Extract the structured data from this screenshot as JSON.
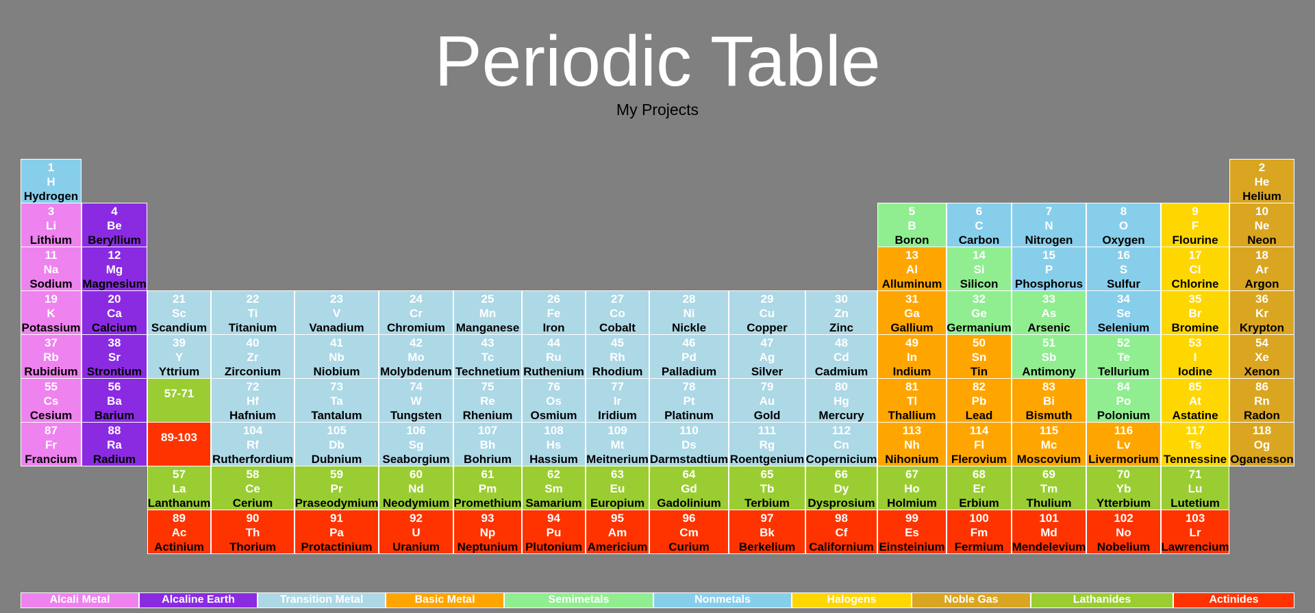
{
  "header": {
    "title": "Periodic Table",
    "subtitle": "My Projects"
  },
  "colors": {
    "alkali": "#ee82ee",
    "alkaline": "#8a2be2",
    "transition": "#add8e6",
    "basic": "#ffa500",
    "semimetal": "#90ee90",
    "nonmetal": "#87ceeb",
    "halogen": "#ffd700",
    "noble": "#daa520",
    "lanthanide": "#9acd32",
    "actinide": "#ff3300"
  },
  "elements": [
    {
      "n": "1",
      "s": "H",
      "name": "Hydrogen",
      "row": 1,
      "col": 1,
      "t": "nonmetal"
    },
    {
      "n": "2",
      "s": "He",
      "name": "Helium",
      "row": 1,
      "col": 18,
      "t": "noble"
    },
    {
      "n": "3",
      "s": "Li",
      "name": "Lithium",
      "row": 2,
      "col": 1,
      "t": "alkali"
    },
    {
      "n": "4",
      "s": "Be",
      "name": "Beryllium",
      "row": 2,
      "col": 2,
      "t": "alkaline"
    },
    {
      "n": "5",
      "s": "B",
      "name": "Boron",
      "row": 2,
      "col": 13,
      "t": "semimetal"
    },
    {
      "n": "6",
      "s": "C",
      "name": "Carbon",
      "row": 2,
      "col": 14,
      "t": "nonmetal"
    },
    {
      "n": "7",
      "s": "N",
      "name": "Nitrogen",
      "row": 2,
      "col": 15,
      "t": "nonmetal"
    },
    {
      "n": "8",
      "s": "O",
      "name": "Oxygen",
      "row": 2,
      "col": 16,
      "t": "nonmetal"
    },
    {
      "n": "9",
      "s": "F",
      "name": "Flourine",
      "row": 2,
      "col": 17,
      "t": "halogen"
    },
    {
      "n": "10",
      "s": "Ne",
      "name": "Neon",
      "row": 2,
      "col": 18,
      "t": "noble"
    },
    {
      "n": "11",
      "s": "Na",
      "name": "Sodium",
      "row": 3,
      "col": 1,
      "t": "alkali"
    },
    {
      "n": "12",
      "s": "Mg",
      "name": "Magnesium",
      "row": 3,
      "col": 2,
      "t": "alkaline"
    },
    {
      "n": "13",
      "s": "Al",
      "name": "Alluminum",
      "row": 3,
      "col": 13,
      "t": "basic"
    },
    {
      "n": "14",
      "s": "Si",
      "name": "Silicon",
      "row": 3,
      "col": 14,
      "t": "semimetal"
    },
    {
      "n": "15",
      "s": "P",
      "name": "Phosphorus",
      "row": 3,
      "col": 15,
      "t": "nonmetal"
    },
    {
      "n": "16",
      "s": "S",
      "name": "Sulfur",
      "row": 3,
      "col": 16,
      "t": "nonmetal"
    },
    {
      "n": "17",
      "s": "Cl",
      "name": "Chlorine",
      "row": 3,
      "col": 17,
      "t": "halogen"
    },
    {
      "n": "18",
      "s": "Ar",
      "name": "Argon",
      "row": 3,
      "col": 18,
      "t": "noble"
    },
    {
      "n": "19",
      "s": "K",
      "name": "Potassium",
      "row": 4,
      "col": 1,
      "t": "alkali"
    },
    {
      "n": "20",
      "s": "Ca",
      "name": "Calcium",
      "row": 4,
      "col": 2,
      "t": "alkaline"
    },
    {
      "n": "21",
      "s": "Sc",
      "name": "Scandium",
      "row": 4,
      "col": 3,
      "t": "transition"
    },
    {
      "n": "22",
      "s": "Ti",
      "name": "Titanium",
      "row": 4,
      "col": 4,
      "t": "transition"
    },
    {
      "n": "23",
      "s": "V",
      "name": "Vanadium",
      "row": 4,
      "col": 5,
      "t": "transition"
    },
    {
      "n": "24",
      "s": "Cr",
      "name": "Chromium",
      "row": 4,
      "col": 6,
      "t": "transition"
    },
    {
      "n": "25",
      "s": "Mn",
      "name": "Manganese",
      "row": 4,
      "col": 7,
      "t": "transition"
    },
    {
      "n": "26",
      "s": "Fe",
      "name": "Iron",
      "row": 4,
      "col": 8,
      "t": "transition"
    },
    {
      "n": "27",
      "s": "Co",
      "name": "Cobalt",
      "row": 4,
      "col": 9,
      "t": "transition"
    },
    {
      "n": "28",
      "s": "Ni",
      "name": "Nickle",
      "row": 4,
      "col": 10,
      "t": "transition"
    },
    {
      "n": "29",
      "s": "Cu",
      "name": "Copper",
      "row": 4,
      "col": 11,
      "t": "transition"
    },
    {
      "n": "30",
      "s": "Zn",
      "name": "Zinc",
      "row": 4,
      "col": 12,
      "t": "transition"
    },
    {
      "n": "31",
      "s": "Ga",
      "name": "Gallium",
      "row": 4,
      "col": 13,
      "t": "basic"
    },
    {
      "n": "32",
      "s": "Ge",
      "name": "Germanium",
      "row": 4,
      "col": 14,
      "t": "semimetal"
    },
    {
      "n": "33",
      "s": "As",
      "name": "Arsenic",
      "row": 4,
      "col": 15,
      "t": "semimetal"
    },
    {
      "n": "34",
      "s": "Se",
      "name": "Selenium",
      "row": 4,
      "col": 16,
      "t": "nonmetal"
    },
    {
      "n": "35",
      "s": "Br",
      "name": "Bromine",
      "row": 4,
      "col": 17,
      "t": "halogen"
    },
    {
      "n": "36",
      "s": "Kr",
      "name": "Krypton",
      "row": 4,
      "col": 18,
      "t": "noble"
    },
    {
      "n": "37",
      "s": "Rb",
      "name": "Rubidium",
      "row": 5,
      "col": 1,
      "t": "alkali"
    },
    {
      "n": "38",
      "s": "Sr",
      "name": "Strontium",
      "row": 5,
      "col": 2,
      "t": "alkaline"
    },
    {
      "n": "39",
      "s": "Y",
      "name": "Yttrium",
      "row": 5,
      "col": 3,
      "t": "transition"
    },
    {
      "n": "40",
      "s": "Zr",
      "name": "Zirconium",
      "row": 5,
      "col": 4,
      "t": "transition"
    },
    {
      "n": "41",
      "s": "Nb",
      "name": "Niobium",
      "row": 5,
      "col": 5,
      "t": "transition"
    },
    {
      "n": "42",
      "s": "Mo",
      "name": "Molybdenum",
      "row": 5,
      "col": 6,
      "t": "transition"
    },
    {
      "n": "43",
      "s": "Tc",
      "name": "Technetium",
      "row": 5,
      "col": 7,
      "t": "transition"
    },
    {
      "n": "44",
      "s": "Ru",
      "name": "Ruthenium",
      "row": 5,
      "col": 8,
      "t": "transition"
    },
    {
      "n": "45",
      "s": "Rh",
      "name": "Rhodium",
      "row": 5,
      "col": 9,
      "t": "transition"
    },
    {
      "n": "46",
      "s": "Pd",
      "name": "Palladium",
      "row": 5,
      "col": 10,
      "t": "transition"
    },
    {
      "n": "47",
      "s": "Ag",
      "name": "Silver",
      "row": 5,
      "col": 11,
      "t": "transition"
    },
    {
      "n": "48",
      "s": "Cd",
      "name": "Cadmium",
      "row": 5,
      "col": 12,
      "t": "transition"
    },
    {
      "n": "49",
      "s": "In",
      "name": "Indium",
      "row": 5,
      "col": 13,
      "t": "basic"
    },
    {
      "n": "50",
      "s": "Sn",
      "name": "Tin",
      "row": 5,
      "col": 14,
      "t": "basic"
    },
    {
      "n": "51",
      "s": "Sb",
      "name": "Antimony",
      "row": 5,
      "col": 15,
      "t": "semimetal"
    },
    {
      "n": "52",
      "s": "Te",
      "name": "Tellurium",
      "row": 5,
      "col": 16,
      "t": "semimetal"
    },
    {
      "n": "53",
      "s": "I",
      "name": "Iodine",
      "row": 5,
      "col": 17,
      "t": "halogen"
    },
    {
      "n": "54",
      "s": "Xe",
      "name": "Xenon",
      "row": 5,
      "col": 18,
      "t": "noble"
    },
    {
      "n": "55",
      "s": "Cs",
      "name": "Cesium",
      "row": 6,
      "col": 1,
      "t": "alkali"
    },
    {
      "n": "56",
      "s": "Ba",
      "name": "Barium",
      "row": 6,
      "col": 2,
      "t": "alkaline"
    },
    {
      "n": "57-71",
      "s": "",
      "name": "",
      "row": 6,
      "col": 3,
      "t": "lanthanide",
      "range": true
    },
    {
      "n": "72",
      "s": "Hf",
      "name": "Hafnium",
      "row": 6,
      "col": 4,
      "t": "transition"
    },
    {
      "n": "73",
      "s": "Ta",
      "name": "Tantalum",
      "row": 6,
      "col": 5,
      "t": "transition"
    },
    {
      "n": "74",
      "s": "W",
      "name": "Tungsten",
      "row": 6,
      "col": 6,
      "t": "transition"
    },
    {
      "n": "75",
      "s": "Re",
      "name": "Rhenium",
      "row": 6,
      "col": 7,
      "t": "transition"
    },
    {
      "n": "76",
      "s": "Os",
      "name": "Osmium",
      "row": 6,
      "col": 8,
      "t": "transition"
    },
    {
      "n": "77",
      "s": "Ir",
      "name": "Iridium",
      "row": 6,
      "col": 9,
      "t": "transition"
    },
    {
      "n": "78",
      "s": "Pt",
      "name": "Platinum",
      "row": 6,
      "col": 10,
      "t": "transition"
    },
    {
      "n": "79",
      "s": "Au",
      "name": "Gold",
      "row": 6,
      "col": 11,
      "t": "transition"
    },
    {
      "n": "80",
      "s": "Hg",
      "name": "Mercury",
      "row": 6,
      "col": 12,
      "t": "transition"
    },
    {
      "n": "81",
      "s": "Tl",
      "name": "Thallium",
      "row": 6,
      "col": 13,
      "t": "basic"
    },
    {
      "n": "82",
      "s": "Pb",
      "name": "Lead",
      "row": 6,
      "col": 14,
      "t": "basic"
    },
    {
      "n": "83",
      "s": "Bi",
      "name": "Bismuth",
      "row": 6,
      "col": 15,
      "t": "basic"
    },
    {
      "n": "84",
      "s": "Po",
      "name": "Polonium",
      "row": 6,
      "col": 16,
      "t": "semimetal"
    },
    {
      "n": "85",
      "s": "At",
      "name": "Astatine",
      "row": 6,
      "col": 17,
      "t": "halogen"
    },
    {
      "n": "86",
      "s": "Rn",
      "name": "Radon",
      "row": 6,
      "col": 18,
      "t": "noble"
    },
    {
      "n": "87",
      "s": "Fr",
      "name": "Francium",
      "row": 7,
      "col": 1,
      "t": "alkali"
    },
    {
      "n": "88",
      "s": "Ra",
      "name": "Radium",
      "row": 7,
      "col": 2,
      "t": "alkaline"
    },
    {
      "n": "89-103",
      "s": "",
      "name": "",
      "row": 7,
      "col": 3,
      "t": "actinide",
      "range": true
    },
    {
      "n": "104",
      "s": "Rf",
      "name": "Rutherfordium",
      "row": 7,
      "col": 4,
      "t": "transition"
    },
    {
      "n": "105",
      "s": "Db",
      "name": "Dubnium",
      "row": 7,
      "col": 5,
      "t": "transition"
    },
    {
      "n": "106",
      "s": "Sg",
      "name": "Seaborgium",
      "row": 7,
      "col": 6,
      "t": "transition"
    },
    {
      "n": "107",
      "s": "Bh",
      "name": "Bohrium",
      "row": 7,
      "col": 7,
      "t": "transition"
    },
    {
      "n": "108",
      "s": "Hs",
      "name": "Hassium",
      "row": 7,
      "col": 8,
      "t": "transition"
    },
    {
      "n": "109",
      "s": "Mt",
      "name": "Meitnerium",
      "row": 7,
      "col": 9,
      "t": "transition"
    },
    {
      "n": "110",
      "s": "Ds",
      "name": "Darmstadtium",
      "row": 7,
      "col": 10,
      "t": "transition"
    },
    {
      "n": "111",
      "s": "Rg",
      "name": "Roentgenium",
      "row": 7,
      "col": 11,
      "t": "transition"
    },
    {
      "n": "112",
      "s": "Cn",
      "name": "Copernicium",
      "row": 7,
      "col": 12,
      "t": "transition"
    },
    {
      "n": "113",
      "s": "Nh",
      "name": "Nihonium",
      "row": 7,
      "col": 13,
      "t": "basic"
    },
    {
      "n": "114",
      "s": "Fl",
      "name": "Flerovium",
      "row": 7,
      "col": 14,
      "t": "basic"
    },
    {
      "n": "115",
      "s": "Mc",
      "name": "Moscovium",
      "row": 7,
      "col": 15,
      "t": "basic"
    },
    {
      "n": "116",
      "s": "Lv",
      "name": "Livermorium",
      "row": 7,
      "col": 16,
      "t": "basic"
    },
    {
      "n": "117",
      "s": "Ts",
      "name": "Tennessine",
      "row": 7,
      "col": 17,
      "t": "halogen"
    },
    {
      "n": "118",
      "s": "Og",
      "name": "Oganesson",
      "row": 7,
      "col": 18,
      "t": "noble"
    },
    {
      "n": "57",
      "s": "La",
      "name": "Lanthanum",
      "row": 8,
      "col": 3,
      "t": "lanthanide"
    },
    {
      "n": "58",
      "s": "Ce",
      "name": "Cerium",
      "row": 8,
      "col": 4,
      "t": "lanthanide"
    },
    {
      "n": "59",
      "s": "Pr",
      "name": "Praseodymium",
      "row": 8,
      "col": 5,
      "t": "lanthanide"
    },
    {
      "n": "60",
      "s": "Nd",
      "name": "Neodymium",
      "row": 8,
      "col": 6,
      "t": "lanthanide"
    },
    {
      "n": "61",
      "s": "Pm",
      "name": "Promethium",
      "row": 8,
      "col": 7,
      "t": "lanthanide"
    },
    {
      "n": "62",
      "s": "Sm",
      "name": "Samarium",
      "row": 8,
      "col": 8,
      "t": "lanthanide"
    },
    {
      "n": "63",
      "s": "Eu",
      "name": "Europium",
      "row": 8,
      "col": 9,
      "t": "lanthanide"
    },
    {
      "n": "64",
      "s": "Gd",
      "name": "Gadolinium",
      "row": 8,
      "col": 10,
      "t": "lanthanide"
    },
    {
      "n": "65",
      "s": "Tb",
      "name": "Terbium",
      "row": 8,
      "col": 11,
      "t": "lanthanide"
    },
    {
      "n": "66",
      "s": "Dy",
      "name": "Dysprosium",
      "row": 8,
      "col": 12,
      "t": "lanthanide"
    },
    {
      "n": "67",
      "s": "Ho",
      "name": "Holmium",
      "row": 8,
      "col": 13,
      "t": "lanthanide"
    },
    {
      "n": "68",
      "s": "Er",
      "name": "Erbium",
      "row": 8,
      "col": 14,
      "t": "lanthanide"
    },
    {
      "n": "69",
      "s": "Tm",
      "name": "Thulium",
      "row": 8,
      "col": 15,
      "t": "lanthanide"
    },
    {
      "n": "70",
      "s": "Yb",
      "name": "Ytterbium",
      "row": 8,
      "col": 16,
      "t": "lanthanide"
    },
    {
      "n": "71",
      "s": "Lu",
      "name": "Lutetium",
      "row": 8,
      "col": 17,
      "t": "lanthanide"
    },
    {
      "n": "89",
      "s": "Ac",
      "name": "Actinium",
      "row": 9,
      "col": 3,
      "t": "actinide"
    },
    {
      "n": "90",
      "s": "Th",
      "name": "Thorium",
      "row": 9,
      "col": 4,
      "t": "actinide"
    },
    {
      "n": "91",
      "s": "Pa",
      "name": "Protactinium",
      "row": 9,
      "col": 5,
      "t": "actinide"
    },
    {
      "n": "92",
      "s": "U",
      "name": "Uranium",
      "row": 9,
      "col": 6,
      "t": "actinide"
    },
    {
      "n": "93",
      "s": "Np",
      "name": "Neptunium",
      "row": 9,
      "col": 7,
      "t": "actinide"
    },
    {
      "n": "94",
      "s": "Pu",
      "name": "Plutonium",
      "row": 9,
      "col": 8,
      "t": "actinide"
    },
    {
      "n": "95",
      "s": "Am",
      "name": "Americium",
      "row": 9,
      "col": 9,
      "t": "actinide"
    },
    {
      "n": "96",
      "s": "Cm",
      "name": "Curium",
      "row": 9,
      "col": 10,
      "t": "actinide"
    },
    {
      "n": "97",
      "s": "Bk",
      "name": "Berkelium",
      "row": 9,
      "col": 11,
      "t": "actinide"
    },
    {
      "n": "98",
      "s": "Cf",
      "name": "Californium",
      "row": 9,
      "col": 12,
      "t": "actinide"
    },
    {
      "n": "99",
      "s": "Es",
      "name": "Einsteinium",
      "row": 9,
      "col": 13,
      "t": "actinide"
    },
    {
      "n": "100",
      "s": "Fm",
      "name": "Fermium",
      "row": 9,
      "col": 14,
      "t": "actinide"
    },
    {
      "n": "101",
      "s": "Md",
      "name": "Mendelevium",
      "row": 9,
      "col": 15,
      "t": "actinide"
    },
    {
      "n": "102",
      "s": "No",
      "name": "Nobelium",
      "row": 9,
      "col": 16,
      "t": "actinide"
    },
    {
      "n": "103",
      "s": "Lr",
      "name": "Lawrencium",
      "row": 9,
      "col": 17,
      "t": "actinide"
    }
  ],
  "legend": [
    {
      "label": "Alcali Metal",
      "t": "alkali"
    },
    {
      "label": "Alcaline Earth",
      "t": "alkaline"
    },
    {
      "label": "Transition Metal",
      "t": "transition"
    },
    {
      "label": "Basic Metal",
      "t": "basic"
    },
    {
      "label": "Semimetals",
      "t": "semimetal"
    },
    {
      "label": "Nonmetals",
      "t": "nonmetal"
    },
    {
      "label": "Halogens",
      "t": "halogen"
    },
    {
      "label": "Noble Gas",
      "t": "noble"
    },
    {
      "label": "Lathanides",
      "t": "lanthanide"
    },
    {
      "label": "Actinides",
      "t": "actinide"
    }
  ]
}
